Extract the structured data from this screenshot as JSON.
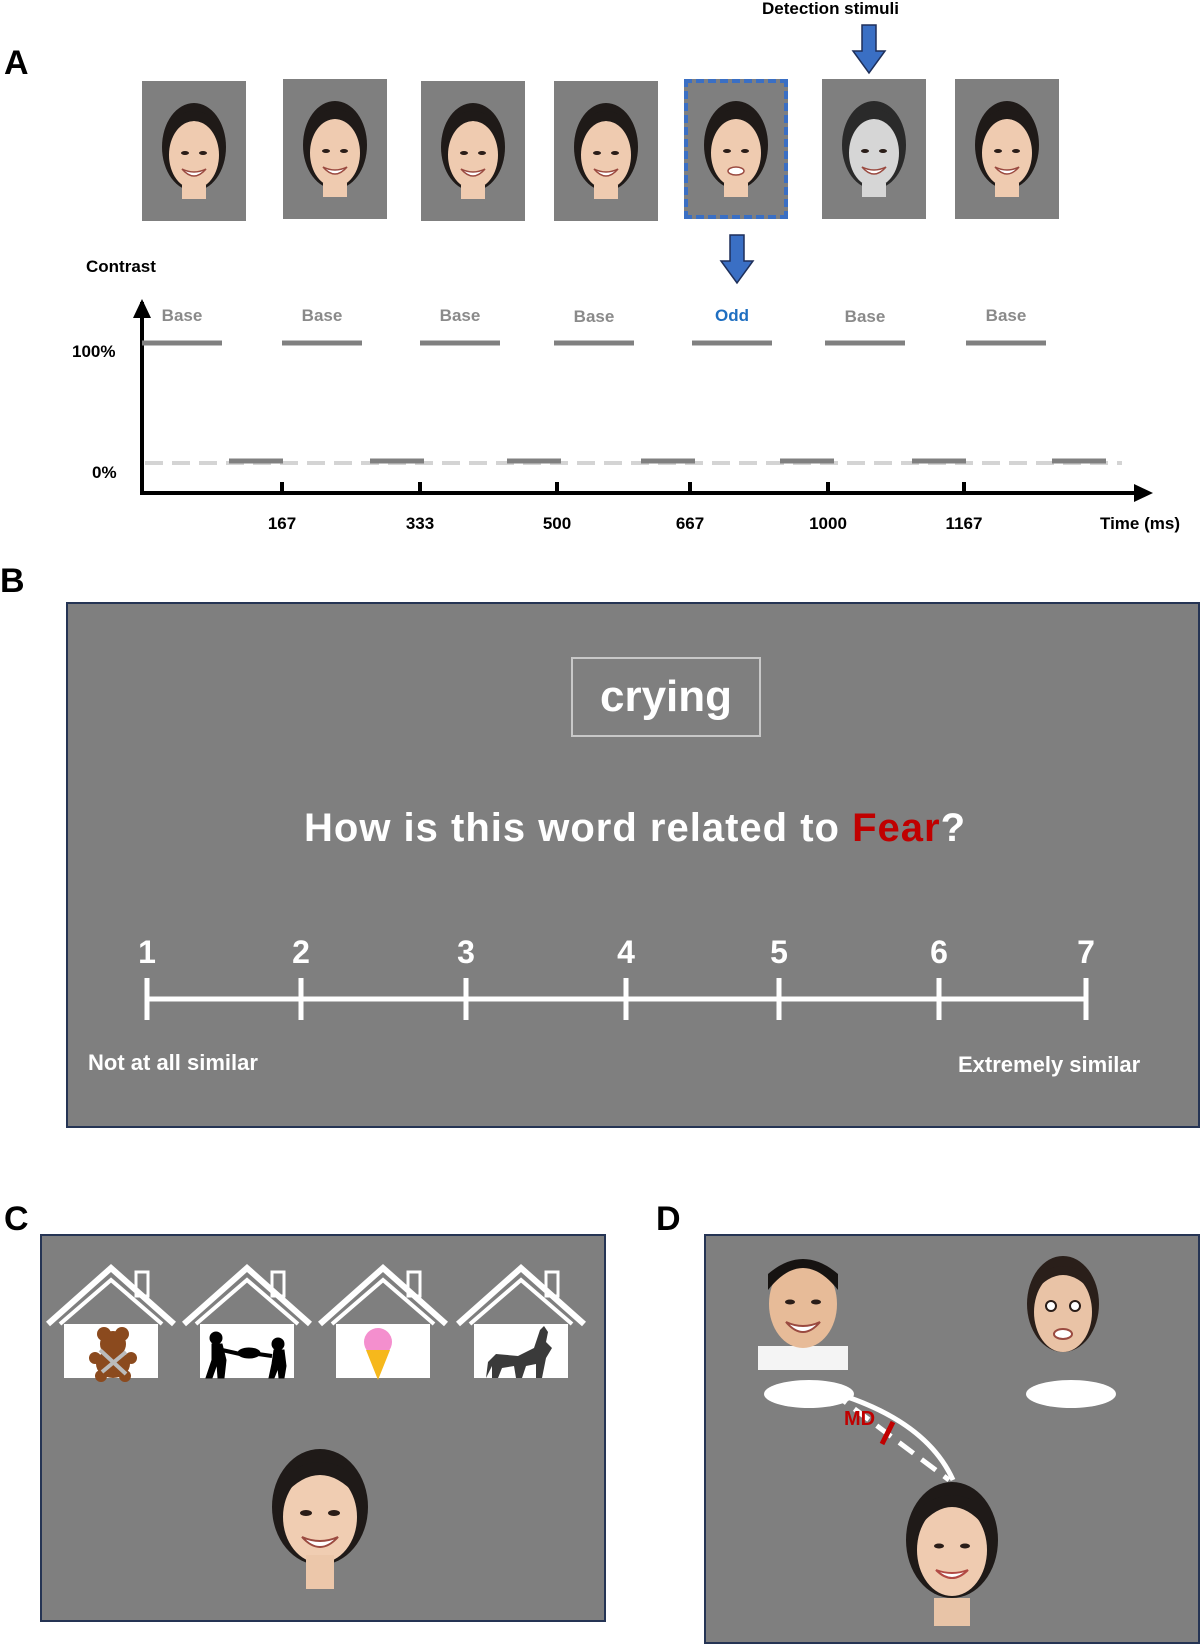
{
  "panelA": {
    "letter": "A",
    "detection_label": "Detection stimuli",
    "y_axis_title": "Contrast",
    "y_ticks": [
      "100%",
      "0%"
    ],
    "x_ticks": [
      "167",
      "333",
      "500",
      "667",
      "1000",
      "1167"
    ],
    "x_axis_label": "Time (ms)",
    "stimulus_labels": [
      "Base",
      "Base",
      "Base",
      "Base",
      "Odd",
      "Base",
      "Base"
    ],
    "colors": {
      "odd": "#1f6fc1",
      "base": "#8a8a8a",
      "arrow": "#3a6fc4"
    }
  },
  "panelB": {
    "letter": "B",
    "word": "crying",
    "question_before": "How is this word related to ",
    "question_emotion": "Fear",
    "question_after": "?",
    "scale": [
      "1",
      "2",
      "3",
      "4",
      "5",
      "6",
      "7"
    ],
    "left_anchor": "Not at all similar",
    "right_anchor": "Extremely similar",
    "colors": {
      "emotion": "#c00000",
      "panel_bg": "#7f7f7f"
    }
  },
  "panelC": {
    "letter": "C",
    "house_icons": [
      "teddy-bear-icon",
      "children-tug-of-war-icon",
      "ice-cream-icon",
      "howling-wolf-icon"
    ]
  },
  "panelD": {
    "letter": "D",
    "distance_label": "MD",
    "colors": {
      "distance": "#c00000"
    }
  }
}
